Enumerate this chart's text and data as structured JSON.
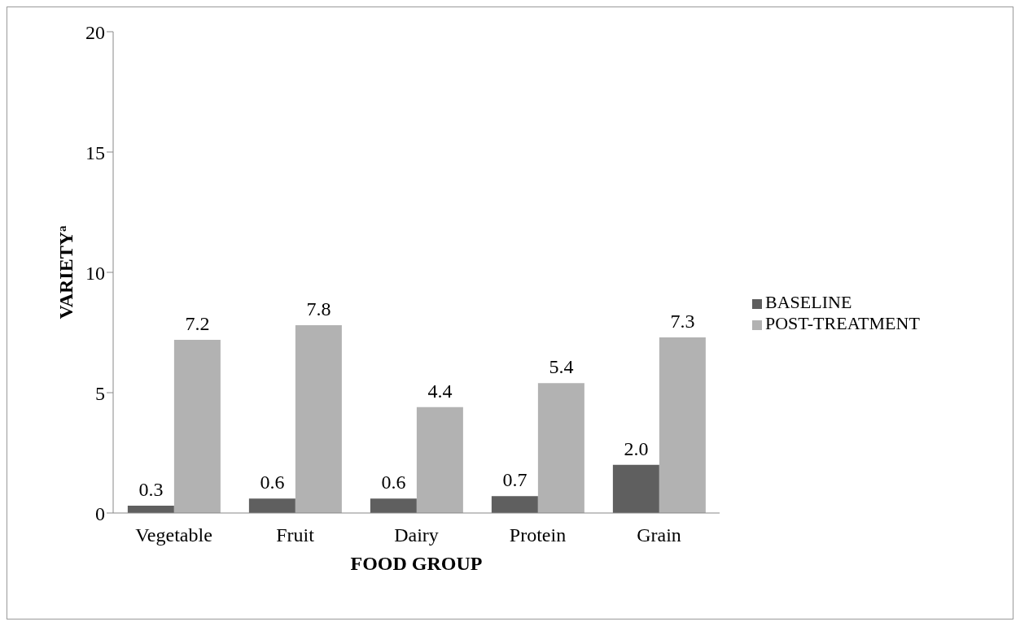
{
  "chart_data": {
    "type": "bar",
    "xlabel": "FOOD GROUP",
    "ylabel": "VARIETY$^{a}$",
    "categories": [
      "Vegetable",
      "Fruit",
      "Dairy",
      "Protein",
      "Grain"
    ],
    "series": [
      {
        "name": "BASELINE",
        "color": "#5f5f5f",
        "values": [
          0.3,
          0.6,
          0.6,
          0.7,
          2.0
        ],
        "value_labels": [
          "0.3",
          "0.6",
          "0.6",
          "0.7",
          "2.0"
        ]
      },
      {
        "name": "POST-TREATMENT",
        "color": "#b2b2b2",
        "values": [
          7.2,
          7.8,
          4.4,
          5.4,
          7.3
        ],
        "value_labels": [
          "7.2",
          "7.8",
          "4.4",
          "5.4",
          "7.3"
        ]
      }
    ],
    "ylim": [
      0,
      20
    ],
    "yticks": [
      0,
      5,
      10,
      15,
      20
    ],
    "legend": "right",
    "grid": false
  }
}
